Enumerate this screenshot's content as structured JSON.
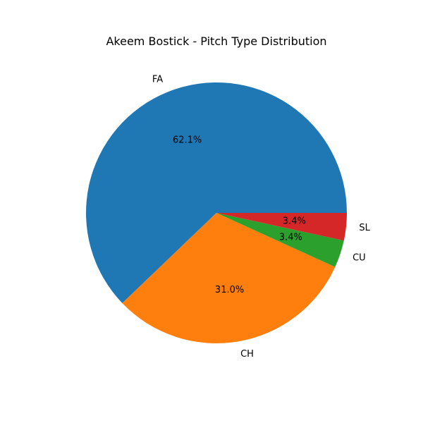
{
  "chart_data": {
    "type": "pie",
    "title": "Akeem Bostick - Pitch Type Distribution",
    "start_angle_deg": 0,
    "direction": "counterclockwise",
    "slices": [
      {
        "label": "FA",
        "value": 62.1,
        "pct_label": "62.1%",
        "color": "#1f77b4"
      },
      {
        "label": "CH",
        "value": 31.0,
        "pct_label": "31.0%",
        "color": "#ff7f0e"
      },
      {
        "label": "CU",
        "value": 3.4,
        "pct_label": "3.4%",
        "color": "#2ca02c"
      },
      {
        "label": "SL",
        "value": 3.4,
        "pct_label": "3.4%",
        "color": "#d62728"
      }
    ]
  }
}
